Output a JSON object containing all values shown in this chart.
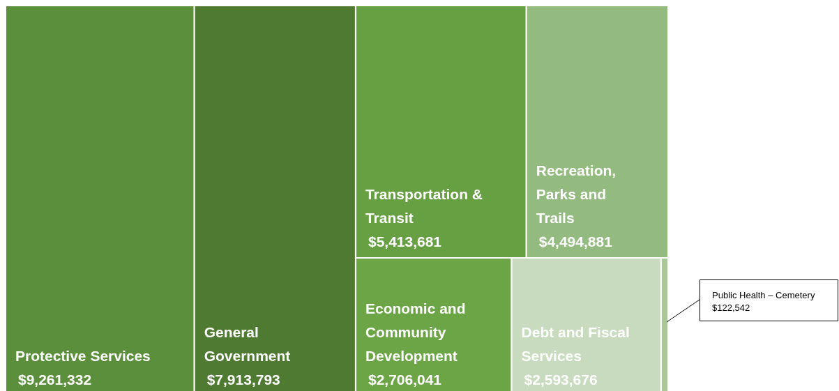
{
  "chart_data": {
    "type": "other",
    "categories": [
      "Protective Services",
      "General Government",
      "Transportation & Transit",
      "Recreation, Parks and Trails",
      "Economic and Community Development",
      "Debt and Fiscal Services",
      "Public Health – Cemetery"
    ],
    "values": [
      9261332,
      7913793,
      5413681,
      4494881,
      2706041,
      2593676,
      122542
    ],
    "value_labels": [
      "$9,261,332",
      "$7,913,793",
      "$5,413,681",
      "$4,494,881",
      "$2,706,041",
      "$2,593,676",
      "$122,542"
    ],
    "colors": [
      "#5b8f3b",
      "#4e7a31",
      "#67a043",
      "#94bb7f",
      "#6ba545",
      "#c9dbbe",
      "#a9c898"
    ]
  }
}
